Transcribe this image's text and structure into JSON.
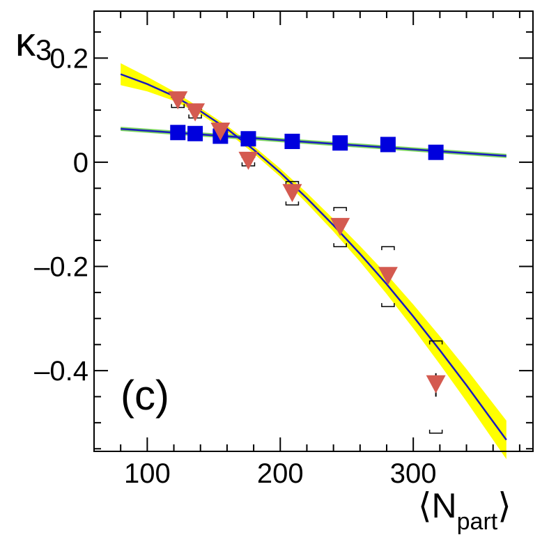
{
  "chart_data": {
    "type": "scatter",
    "panel_label": "(c)",
    "ylabel_main": "κ",
    "ylabel_sub": "3",
    "xlabel_left": "⟨",
    "xlabel_main": "N",
    "xlabel_sub": "part",
    "xlabel_right": "⟩",
    "xlim": [
      60,
      390
    ],
    "ylim": [
      -0.555,
      0.29
    ],
    "xticks": [
      100,
      200,
      300
    ],
    "xtick_labels": [
      "100",
      "200",
      "300"
    ],
    "yticks": [
      0.2,
      0,
      -0.2,
      -0.4
    ],
    "ytick_labels": [
      "0.2",
      "0",
      "–0.2",
      "–0.4"
    ],
    "legend": "none",
    "grid": false,
    "series": [
      {
        "name": "squares",
        "marker": "square",
        "color": "#0000dd",
        "points": [
          {
            "x": 123,
            "y": 0.057,
            "sys_lo": 0.047,
            "sys_hi": 0.067
          },
          {
            "x": 136,
            "y": 0.055,
            "sys_lo": 0.045,
            "sys_hi": 0.065
          },
          {
            "x": 155,
            "y": 0.05,
            "sys_lo": 0.04,
            "sys_hi": 0.06
          },
          {
            "x": 176,
            "y": 0.045,
            "sys_lo": 0.035,
            "sys_hi": 0.055
          },
          {
            "x": 209,
            "y": 0.04,
            "sys_lo": 0.03,
            "sys_hi": 0.05
          },
          {
            "x": 245,
            "y": 0.037,
            "sys_lo": 0.027,
            "sys_hi": 0.047
          },
          {
            "x": 281,
            "y": 0.034,
            "sys_lo": 0.024,
            "sys_hi": 0.044
          },
          {
            "x": 317,
            "y": 0.019,
            "sys_lo": 0.009,
            "sys_hi": 0.029
          }
        ]
      },
      {
        "name": "triangles",
        "marker": "triangle-down",
        "color": "#d45a50",
        "points": [
          {
            "x": 123,
            "y": 0.12,
            "sys_lo": 0.105,
            "sys_hi": 0.13
          },
          {
            "x": 136,
            "y": 0.097,
            "sys_lo": 0.085,
            "sys_hi": 0.107
          },
          {
            "x": 155,
            "y": 0.06,
            "sys_lo": 0.045,
            "sys_hi": 0.068
          },
          {
            "x": 176,
            "y": 0.004,
            "sys_lo": -0.007,
            "sys_hi": 0.015
          },
          {
            "x": 209,
            "y": -0.058,
            "sys_lo": -0.082,
            "sys_hi": -0.037
          },
          {
            "x": 245,
            "y": -0.123,
            "sys_lo": -0.162,
            "sys_hi": -0.087
          },
          {
            "x": 281,
            "y": -0.217,
            "sys_lo": -0.277,
            "sys_hi": -0.162
          },
          {
            "x": 317,
            "y": -0.425,
            "sys_lo": -0.52,
            "sys_hi": -0.343,
            "stat_lo": -0.45,
            "stat_hi": -0.405
          }
        ]
      }
    ],
    "fits": [
      {
        "name": "triangle-fit",
        "color": "#1a1abf",
        "band_color": "#ffff00",
        "x": [
          80,
          100,
          120,
          140,
          160,
          180,
          200,
          220,
          240,
          260,
          280,
          300,
          320,
          340,
          370
        ],
        "y": [
          0.169,
          0.15,
          0.127,
          0.098,
          0.064,
          0.024,
          -0.02,
          -0.069,
          -0.121,
          -0.176,
          -0.234,
          -0.296,
          -0.361,
          -0.428,
          -0.533
        ],
        "band_halfwidth": [
          0.021,
          0.014,
          0.009,
          0.006,
          0.006,
          0.007,
          0.008,
          0.01,
          0.012,
          0.015,
          0.019,
          0.023,
          0.027,
          0.031,
          0.037
        ]
      },
      {
        "name": "square-fit",
        "color": "#1a1abf",
        "band_color": "#7fd860",
        "x": [
          80,
          370
        ],
        "y": [
          0.064,
          0.012
        ],
        "band_halfwidth": [
          0.004,
          0.004
        ]
      }
    ]
  }
}
